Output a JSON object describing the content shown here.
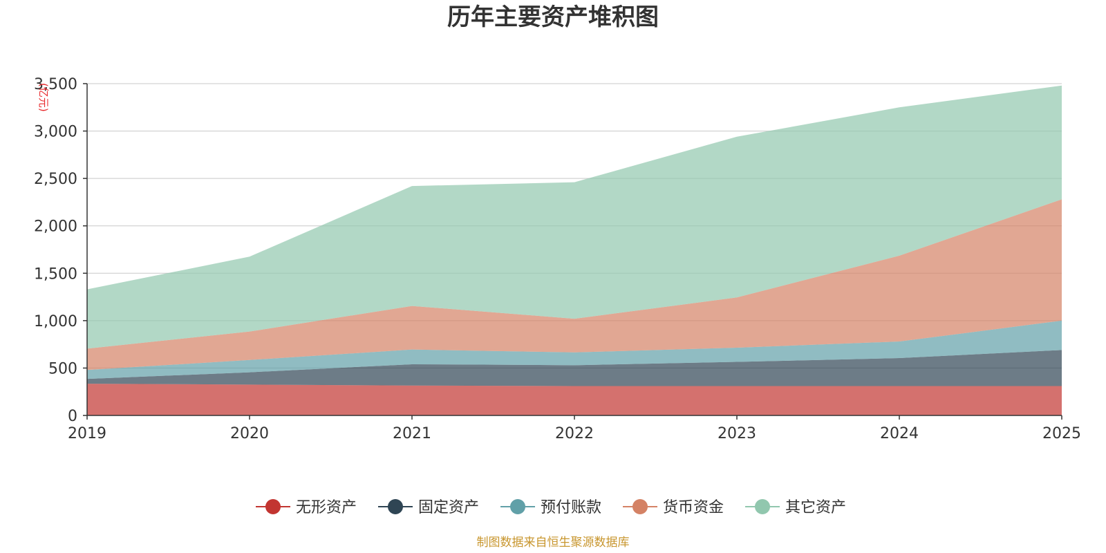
{
  "title": "历年主要资产堆积图",
  "source_note": "制图数据来自恒生聚源数据库",
  "chart_data": {
    "type": "area",
    "stacked": true,
    "title": "历年主要资产堆积图",
    "ylabel": "(亿元)",
    "xlabel": "",
    "categories": [
      "2019",
      "2020",
      "2021",
      "2022",
      "2023",
      "2024",
      "2025"
    ],
    "ylim": [
      0,
      3500
    ],
    "yticks": [
      0,
      500,
      1000,
      1500,
      2000,
      2500,
      3000,
      3500
    ],
    "ytick_labels": [
      "0",
      "500",
      "1,000",
      "1,500",
      "2,000",
      "2,500",
      "3,000",
      "3,500"
    ],
    "grid": true,
    "legend_position": "bottom",
    "series": [
      {
        "name": "无形资产",
        "color": "#c23531",
        "values": [
          335,
          325,
          315,
          310,
          310,
          310,
          310
        ]
      },
      {
        "name": "固定资产",
        "color": "#2f4554",
        "values": [
          50,
          130,
          225,
          220,
          255,
          295,
          380
        ]
      },
      {
        "name": "预付账款",
        "color": "#61a0a8",
        "values": [
          95,
          130,
          155,
          135,
          150,
          175,
          310
        ]
      },
      {
        "name": "货币资金",
        "color": "#d48265",
        "values": [
          225,
          300,
          460,
          355,
          530,
          905,
          1280
        ]
      },
      {
        "name": "其它资产",
        "color": "#91c7ae",
        "values": [
          625,
          790,
          1265,
          1440,
          1695,
          1565,
          1200
        ]
      }
    ]
  }
}
